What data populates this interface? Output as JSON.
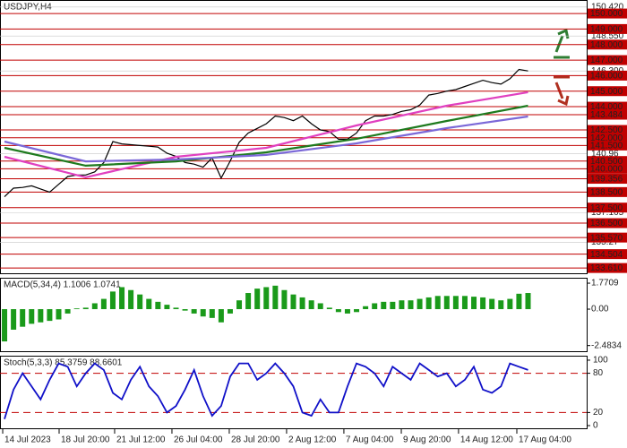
{
  "chart_data": [
    {
      "type": "line",
      "title": "USDJPY,H4",
      "xlim": [
        -0.5,
        64.5
      ],
      "xticks": [
        {
          "value": -0.2,
          "label": "14 Jul 2023"
        },
        {
          "value": 6.05,
          "label": "18 Jul 20:00"
        },
        {
          "value": 12.2,
          "label": "21 Jul 12:00"
        },
        {
          "value": 18.55,
          "label": "26 Jul 04:00"
        },
        {
          "value": 24.9,
          "label": "28 Jul 20:00"
        },
        {
          "value": 31.25,
          "label": "2 Aug 12:00"
        },
        {
          "value": 37.6,
          "label": "7 Aug 04:00"
        },
        {
          "value": 43.96,
          "label": "9 Aug 20:00"
        },
        {
          "value": 50.3,
          "label": "14 Aug 12:00"
        },
        {
          "value": 56.76,
          "label": "17 Aug 04:00"
        }
      ],
      "ylim": [
        133.27,
        150.87
      ],
      "yticks": [
        {
          "value": 150,
          "label": "150.000"
        },
        {
          "value": 149,
          "label": "149.000"
        },
        {
          "value": 148,
          "label": "148.000"
        },
        {
          "value": 147,
          "label": "147.000"
        },
        {
          "value": 146,
          "label": "146.000"
        },
        {
          "value": 145,
          "label": "145.000"
        },
        {
          "value": 144,
          "label": "144.000"
        },
        143.484,
        {
          "value": 142.5,
          "label": "142.500"
        },
        {
          "value": 142,
          "label": "142.000"
        },
        {
          "value": 141.5,
          "label": "141.500"
        },
        {
          "value": 140.5,
          "label": "140.500"
        },
        {
          "value": 140,
          "label": "140.000"
        },
        139.356,
        {
          "value": 138.5,
          "label": "138.500"
        },
        {
          "value": 137.5,
          "label": "137.500"
        },
        {
          "value": 136.5,
          "label": "136.500"
        },
        {
          "value": 135.57,
          "label": "135.570"
        },
        134.504,
        {
          "value": 133.61,
          "label": "133.610"
        }
      ],
      "level_color": "#c00000",
      "yticks_plain": [
        {
          "value": 150.42,
          "label": "150.420"
        },
        {
          "value": 148.55,
          "label": "148.550"
        },
        {
          "value": 146.3,
          "label": "146.300"
        },
        140.96,
        137.165,
        135.27
      ],
      "series": [
        {
          "color": "#000000",
          "values": [
            138.2,
            138.75,
            138.8,
            138.9,
            138.7,
            138.5,
            139.0,
            139.5,
            139.6,
            139.6,
            139.8,
            140.4,
            141.75,
            141.6,
            141.55,
            141.5,
            141.45,
            141.4,
            141.0,
            140.8,
            140.4,
            140.3,
            140.1,
            140.7,
            139.4,
            140.5,
            141.7,
            142.3,
            142.6,
            142.9,
            143.4,
            143.3,
            143.1,
            143.4,
            142.9,
            142.5,
            142.4,
            141.9,
            141.9,
            142.3,
            143.1,
            143.4,
            143.4,
            143.5,
            143.7,
            143.8,
            144.1,
            144.75,
            144.85,
            145.0,
            145.1,
            145.3,
            145.5,
            145.7,
            145.55,
            145.45,
            145.8,
            146.4,
            146.3
          ]
        },
        {
          "color": "#e040c0",
          "x": [
            0,
            9,
            19,
            29,
            39,
            49,
            58
          ],
          "values": [
            140.77,
            139.45,
            140.77,
            141.35,
            142.79,
            144.06,
            144.93
          ]
        },
        {
          "color": "#1e7a1e",
          "x": [
            0,
            9,
            19,
            29,
            39,
            49,
            58
          ],
          "values": [
            141.35,
            140.2,
            140.48,
            141.06,
            141.93,
            143.08,
            144.06
          ]
        },
        {
          "color": "#7b68d8",
          "x": [
            0,
            9,
            19,
            29,
            39,
            49,
            58
          ],
          "values": [
            141.75,
            140.48,
            140.6,
            140.89,
            141.64,
            142.62,
            143.37
          ]
        }
      ]
    },
    {
      "type": "bar",
      "title": "MACD(5,34,4) 1.1006 1.0741",
      "color": "#1a9a1a",
      "ylim": [
        -2.87,
        2.14
      ],
      "yticks": [
        1.7709,
        {
          "value": 0,
          "label": "0.00"
        },
        -2.4834
      ],
      "values": [
        -2.2,
        -1.4,
        -1.2,
        -1.0,
        -0.9,
        -0.8,
        -0.7,
        -0.3,
        0.05,
        0.1,
        0.4,
        0.7,
        1.2,
        1.5,
        1.3,
        1.0,
        0.7,
        0.5,
        0.3,
        0.1,
        -0.1,
        -0.3,
        -0.5,
        -0.6,
        -0.9,
        -0.3,
        0.6,
        1.1,
        1.4,
        1.5,
        1.6,
        1.3,
        1.0,
        0.8,
        0.6,
        0.4,
        0.1,
        -0.2,
        -0.3,
        -0.2,
        0.2,
        0.4,
        0.5,
        0.5,
        0.6,
        0.6,
        0.7,
        0.8,
        0.9,
        0.9,
        0.9,
        0.9,
        0.85,
        0.8,
        0.7,
        0.6,
        0.7,
        1.05,
        1.1
      ]
    },
    {
      "type": "line",
      "title": "Stoch(5,3,3) 85.3759 88.6601",
      "color": "#1010c8",
      "ylim": [
        -4.1,
        106.8
      ],
      "yticks": [
        100,
        80,
        20,
        0
      ],
      "hlines": [
        80,
        20
      ],
      "hline_color": "#c00000",
      "values": [
        10,
        55,
        80,
        60,
        40,
        70,
        95,
        90,
        60,
        80,
        95,
        85,
        50,
        40,
        70,
        90,
        60,
        45,
        20,
        30,
        55,
        85,
        45,
        15,
        30,
        75,
        95,
        95,
        70,
        80,
        95,
        80,
        60,
        20,
        15,
        40,
        20,
        20,
        60,
        95,
        90,
        80,
        60,
        90,
        80,
        70,
        95,
        85,
        75,
        80,
        60,
        70,
        90,
        55,
        50,
        60,
        95,
        90,
        85
      ]
    }
  ]
}
